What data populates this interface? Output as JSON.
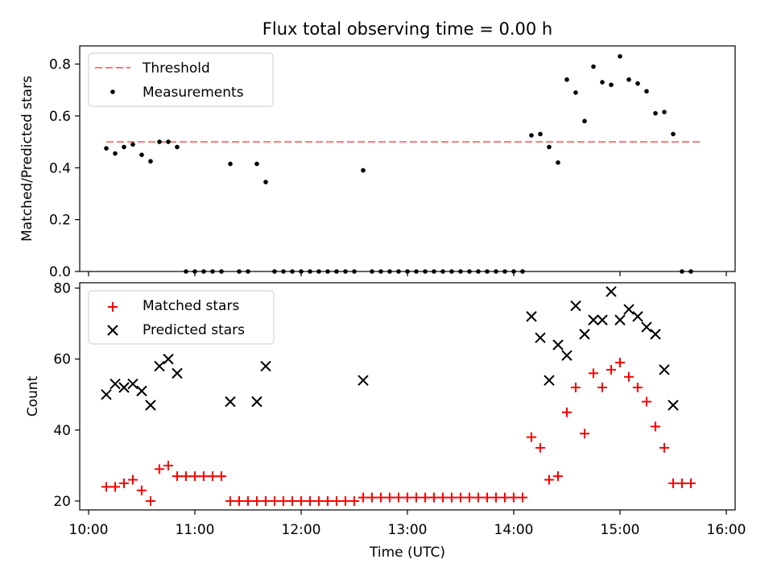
{
  "title": "Flux total observing time = 0.00 h",
  "chart_data": [
    {
      "type": "scatter",
      "ylabel": "Matched/Predicted stars",
      "ylim": [
        0,
        0.87
      ],
      "yticks": [
        "0.0",
        "0.2",
        "0.4",
        "0.6",
        "0.8"
      ],
      "ytick_values": [
        0,
        0.2,
        0.4,
        0.6,
        0.8
      ],
      "legend": "top-left",
      "threshold": {
        "label": "Threshold",
        "value": 0.5,
        "x_from": "10:10",
        "x_to": "15:45",
        "color": "#ff7777"
      },
      "series": [
        {
          "name": "Measurements",
          "color": "#000000",
          "points": [
            [
              "10:10",
              0.475
            ],
            [
              "10:15",
              0.455
            ],
            [
              "10:20",
              0.48
            ],
            [
              "10:25",
              0.49
            ],
            [
              "10:30",
              0.45
            ],
            [
              "10:35",
              0.425
            ],
            [
              "10:40",
              0.5
            ],
            [
              "10:45",
              0.5
            ],
            [
              "10:50",
              0.48
            ],
            [
              "10:55",
              0
            ],
            [
              "11:00",
              0
            ],
            [
              "11:05",
              0
            ],
            [
              "11:10",
              0
            ],
            [
              "11:15",
              0
            ],
            [
              "11:20",
              0.415
            ],
            [
              "11:25",
              0
            ],
            [
              "11:30",
              0
            ],
            [
              "11:35",
              0.415
            ],
            [
              "11:40",
              0.345
            ],
            [
              "11:45",
              0
            ],
            [
              "11:50",
              0
            ],
            [
              "11:55",
              0
            ],
            [
              "12:00",
              0
            ],
            [
              "12:05",
              0
            ],
            [
              "12:10",
              0
            ],
            [
              "12:15",
              0
            ],
            [
              "12:20",
              0
            ],
            [
              "12:25",
              0
            ],
            [
              "12:30",
              0
            ],
            [
              "12:35",
              0.39
            ],
            [
              "12:40",
              0
            ],
            [
              "12:45",
              0
            ],
            [
              "12:50",
              0
            ],
            [
              "12:55",
              0
            ],
            [
              "13:00",
              0
            ],
            [
              "13:05",
              0
            ],
            [
              "13:10",
              0
            ],
            [
              "13:15",
              0
            ],
            [
              "13:20",
              0
            ],
            [
              "13:25",
              0
            ],
            [
              "13:30",
              0
            ],
            [
              "13:35",
              0
            ],
            [
              "13:40",
              0
            ],
            [
              "13:45",
              0
            ],
            [
              "13:50",
              0
            ],
            [
              "13:55",
              0
            ],
            [
              "14:00",
              0
            ],
            [
              "14:05",
              0
            ],
            [
              "14:10",
              0.525
            ],
            [
              "14:15",
              0.53
            ],
            [
              "14:20",
              0.48
            ],
            [
              "14:25",
              0.42
            ],
            [
              "14:30",
              0.74
            ],
            [
              "14:35",
              0.69
            ],
            [
              "14:40",
              0.58
            ],
            [
              "14:45",
              0.79
            ],
            [
              "14:50",
              0.73
            ],
            [
              "14:55",
              0.72
            ],
            [
              "15:00",
              0.83
            ],
            [
              "15:05",
              0.74
            ],
            [
              "15:10",
              0.725
            ],
            [
              "15:15",
              0.695
            ],
            [
              "15:20",
              0.61
            ],
            [
              "15:25",
              0.615
            ],
            [
              "15:30",
              0.53
            ],
            [
              "15:35",
              0
            ],
            [
              "15:40",
              0
            ]
          ]
        }
      ]
    },
    {
      "type": "scatter",
      "xlabel": "Time (UTC)",
      "ylabel": "Count",
      "ylim": [
        17.5,
        81.5
      ],
      "yticks": [
        "20",
        "40",
        "60",
        "80"
      ],
      "ytick_values": [
        20,
        40,
        60,
        80
      ],
      "xlim": [
        "09:55",
        "16:05"
      ],
      "xticks": [
        "10:00",
        "11:00",
        "12:00",
        "13:00",
        "14:00",
        "15:00",
        "16:00"
      ],
      "legend": "top-left",
      "series": [
        {
          "name": "Matched stars",
          "marker": "plus",
          "color": "#ff0000",
          "points": [
            [
              "10:10",
              24
            ],
            [
              "10:15",
              24
            ],
            [
              "10:20",
              25
            ],
            [
              "10:25",
              26
            ],
            [
              "10:30",
              23
            ],
            [
              "10:35",
              20
            ],
            [
              "10:40",
              29
            ],
            [
              "10:45",
              30
            ],
            [
              "10:50",
              27
            ],
            [
              "10:55",
              27
            ],
            [
              "11:00",
              27
            ],
            [
              "11:05",
              27
            ],
            [
              "11:10",
              27
            ],
            [
              "11:15",
              27
            ],
            [
              "11:20",
              20
            ],
            [
              "11:25",
              20
            ],
            [
              "11:30",
              20
            ],
            [
              "11:35",
              20
            ],
            [
              "11:40",
              20
            ],
            [
              "11:45",
              20
            ],
            [
              "11:50",
              20
            ],
            [
              "11:55",
              20
            ],
            [
              "12:00",
              20
            ],
            [
              "12:05",
              20
            ],
            [
              "12:10",
              20
            ],
            [
              "12:15",
              20
            ],
            [
              "12:20",
              20
            ],
            [
              "12:25",
              20
            ],
            [
              "12:30",
              20
            ],
            [
              "12:35",
              21
            ],
            [
              "12:40",
              21
            ],
            [
              "12:45",
              21
            ],
            [
              "12:50",
              21
            ],
            [
              "12:55",
              21
            ],
            [
              "13:00",
              21
            ],
            [
              "13:05",
              21
            ],
            [
              "13:10",
              21
            ],
            [
              "13:15",
              21
            ],
            [
              "13:20",
              21
            ],
            [
              "13:25",
              21
            ],
            [
              "13:30",
              21
            ],
            [
              "13:35",
              21
            ],
            [
              "13:40",
              21
            ],
            [
              "13:45",
              21
            ],
            [
              "13:50",
              21
            ],
            [
              "13:55",
              21
            ],
            [
              "14:00",
              21
            ],
            [
              "14:05",
              21
            ],
            [
              "14:10",
              38
            ],
            [
              "14:15",
              35
            ],
            [
              "14:20",
              26
            ],
            [
              "14:25",
              27
            ],
            [
              "14:30",
              45
            ],
            [
              "14:35",
              52
            ],
            [
              "14:40",
              39
            ],
            [
              "14:45",
              56
            ],
            [
              "14:50",
              52
            ],
            [
              "14:55",
              57
            ],
            [
              "15:00",
              59
            ],
            [
              "15:05",
              55
            ],
            [
              "15:10",
              52
            ],
            [
              "15:15",
              48
            ],
            [
              "15:20",
              41
            ],
            [
              "15:25",
              35
            ],
            [
              "15:30",
              25
            ],
            [
              "15:35",
              25
            ],
            [
              "15:40",
              25
            ]
          ]
        },
        {
          "name": "Predicted stars",
          "marker": "x",
          "color": "#000000",
          "points": [
            [
              "10:10",
              50
            ],
            [
              "10:15",
              53
            ],
            [
              "10:20",
              52
            ],
            [
              "10:25",
              53
            ],
            [
              "10:30",
              51
            ],
            [
              "10:35",
              47
            ],
            [
              "10:40",
              58
            ],
            [
              "10:45",
              60
            ],
            [
              "10:50",
              56
            ],
            [
              "11:20",
              48
            ],
            [
              "11:35",
              48
            ],
            [
              "11:40",
              58
            ],
            [
              "12:35",
              54
            ],
            [
              "14:10",
              72
            ],
            [
              "14:15",
              66
            ],
            [
              "14:20",
              54
            ],
            [
              "14:25",
              64
            ],
            [
              "14:30",
              61
            ],
            [
              "14:35",
              75
            ],
            [
              "14:40",
              67
            ],
            [
              "14:45",
              71
            ],
            [
              "14:50",
              71
            ],
            [
              "14:55",
              79
            ],
            [
              "15:00",
              71
            ],
            [
              "15:05",
              74
            ],
            [
              "15:10",
              72
            ],
            [
              "15:15",
              69
            ],
            [
              "15:20",
              67
            ],
            [
              "15:25",
              57
            ],
            [
              "15:30",
              47
            ]
          ]
        }
      ]
    }
  ]
}
